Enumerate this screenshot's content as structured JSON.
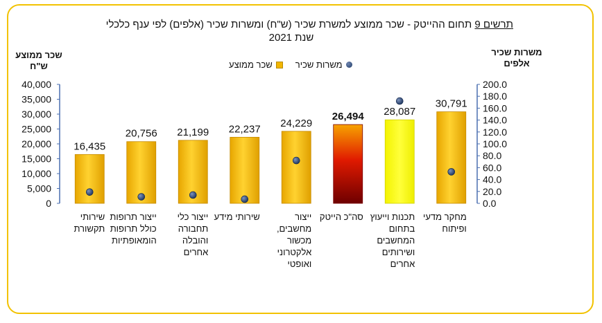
{
  "title": {
    "number_label": "תרשים 9",
    "line1": " תחום ההייטק -  שכר ממוצע למשרת שכיר (ש\"ח) ומשרות שכיר (אלפים) לפי ענף כלכלי",
    "line2": "שנת 2021"
  },
  "legend": {
    "jobs": "משרות שכיר",
    "wage": "שכר ממוצע"
  },
  "colors": {
    "frame": "#f2c200",
    "bar_gold": "#f2b600",
    "bar_yellow": "#ffff00",
    "bar_total_dark": "#8a0000",
    "dot": "#1f3a66"
  },
  "chart_data": {
    "type": "bar",
    "ylabel": "שכר ממוצע ש\"ח",
    "y2label": "משרות שכיר אלפים",
    "ylim": [
      0,
      40000
    ],
    "y2lim": [
      0,
      200
    ],
    "yticks": [
      "0",
      "5,000",
      "10,000",
      "15,000",
      "20,000",
      "25,000",
      "30,000",
      "35,000",
      "40,000"
    ],
    "y2ticks": [
      "0.0",
      "20.0",
      "40.0",
      "60.0",
      "80.0",
      "100.0",
      "120.0",
      "140.0",
      "160.0",
      "180.0",
      "200.0"
    ],
    "categories": [
      [
        "מחקר מדעי",
        "ופיתוח"
      ],
      [
        "תכנות וייעוץ",
        "בתחום",
        "המחשבים",
        "ושירותים",
        "אחרים"
      ],
      [
        "סה\"כ הייטק"
      ],
      [
        "ייצור",
        "מחשבים,",
        "מכשור",
        "אלקטרוני",
        "ואופטי"
      ],
      [
        "שירותי מידע"
      ],
      [
        "ייצור כלי",
        "תחבורה",
        "והובלה",
        "אחרים"
      ],
      [
        "ייצור תרופות",
        "כולל תרופות",
        "הומאופתיות"
      ],
      [
        "שירותי",
        "תקשורת"
      ]
    ],
    "series": [
      {
        "name": "שכר ממוצע",
        "axis": "left",
        "values": [
          30791,
          28087,
          26494,
          24229,
          22237,
          21199,
          20756,
          16435
        ],
        "labels": [
          "30,791",
          "28,087",
          "26,494",
          "24,229",
          "22,237",
          "21,199",
          "20,756",
          "16,435"
        ]
      },
      {
        "name": "משרות שכיר",
        "axis": "right",
        "values": [
          53,
          172,
          null,
          72,
          7,
          14,
          11,
          19
        ]
      }
    ],
    "bar_styles": [
      "gold",
      "yellow",
      "total",
      "gold",
      "gold",
      "gold",
      "gold",
      "gold"
    ],
    "bold_label_index": 2
  }
}
